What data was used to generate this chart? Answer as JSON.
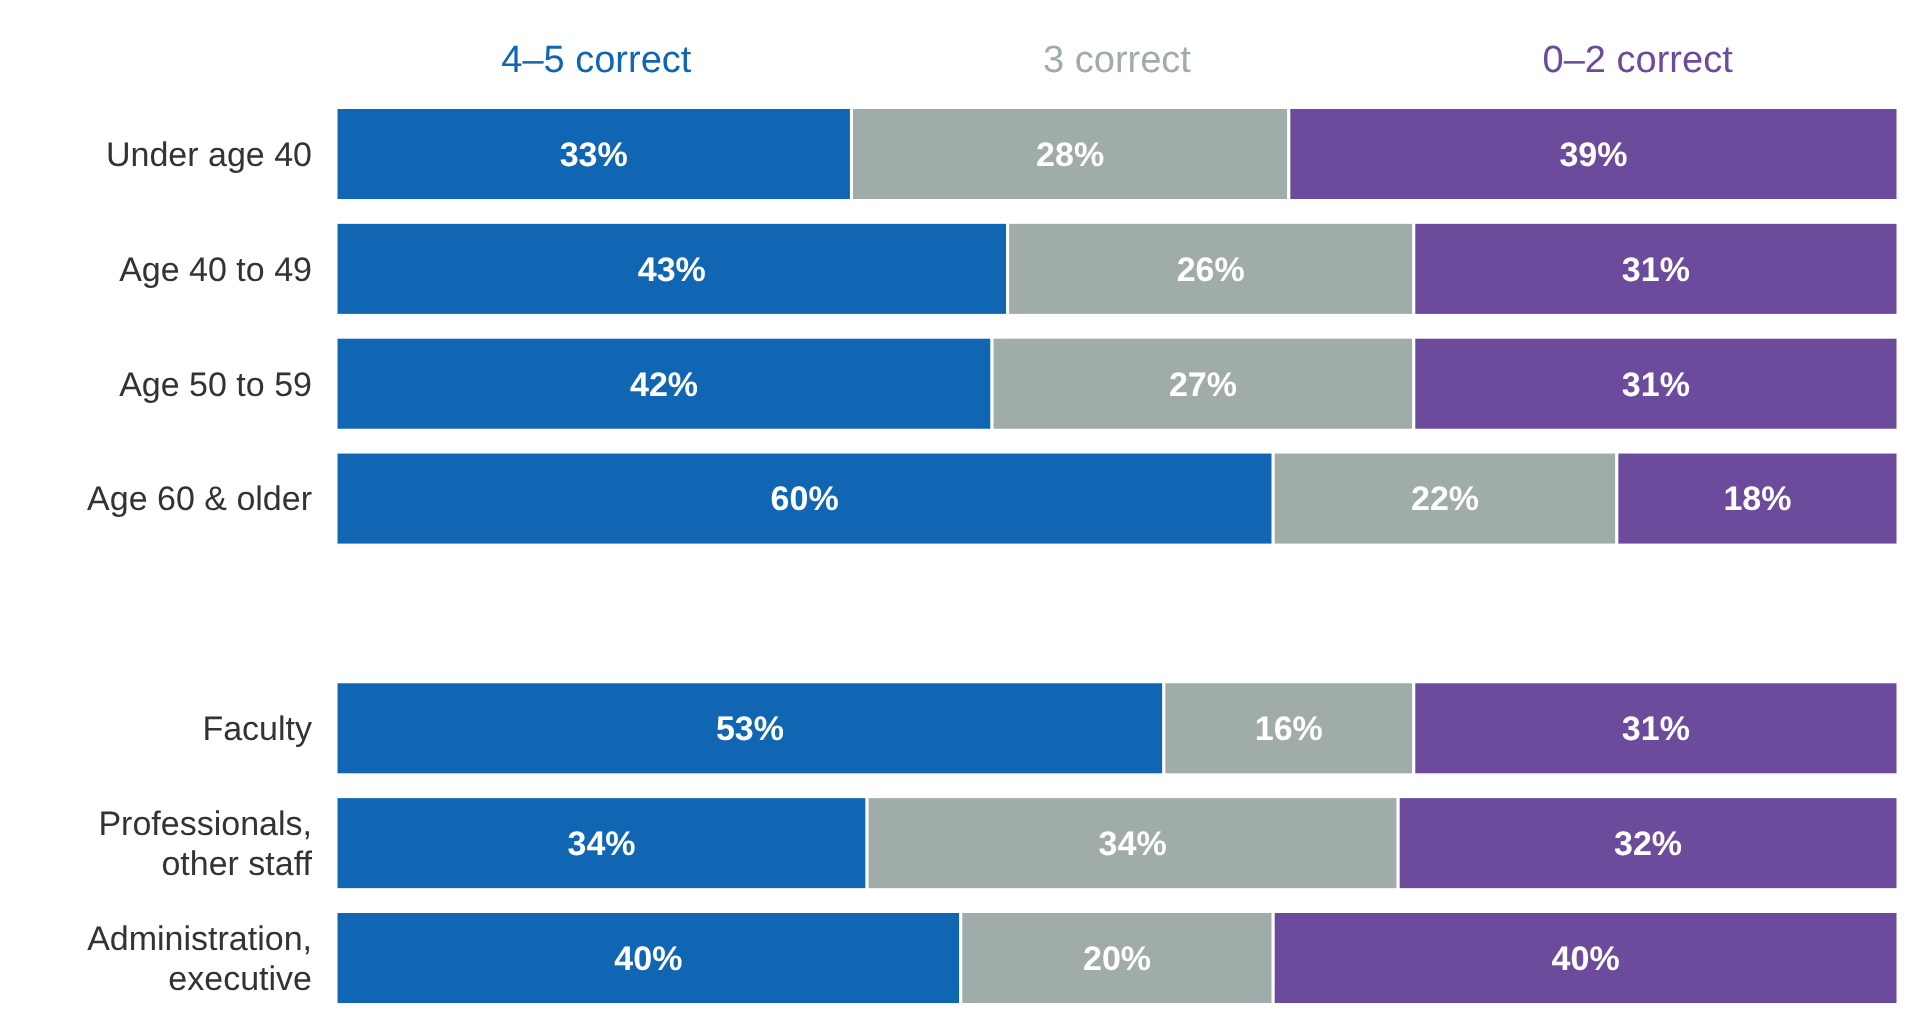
{
  "chart_data": {
    "type": "bar",
    "orientation": "horizontal",
    "stacked": true,
    "legend": "top",
    "tick_labels": "y",
    "xlim": [
      0,
      100
    ],
    "categories": [
      "Under age 40",
      "Age 40 to 49",
      "Age 50 to 59",
      "Age 60 & older",
      null,
      "Faculty",
      "Professionals, other staff",
      "Administration, executive"
    ],
    "series": [
      {
        "name": "4–5 correct",
        "color": "#1066b3",
        "values": [
          33,
          43,
          42,
          60,
          null,
          53,
          34,
          40
        ],
        "value_labels": [
          "33%",
          "43%",
          "42%",
          "60%",
          null,
          "53%",
          "34%",
          "40%"
        ]
      },
      {
        "name": "3 correct",
        "color": "#a0acaa",
        "values": [
          28,
          26,
          27,
          22,
          null,
          16,
          34,
          20
        ],
        "value_labels": [
          "28%",
          "26%",
          "27%",
          "22%",
          null,
          "16%",
          "34%",
          "20%"
        ]
      },
      {
        "name": "0–2 correct",
        "color": "#6c4b9c",
        "values": [
          39,
          31,
          31,
          18,
          null,
          31,
          32,
          40
        ],
        "value_labels": [
          "39%",
          "31%",
          "31%",
          "18%",
          null,
          "31%",
          "32%",
          "40%"
        ]
      }
    ]
  }
}
